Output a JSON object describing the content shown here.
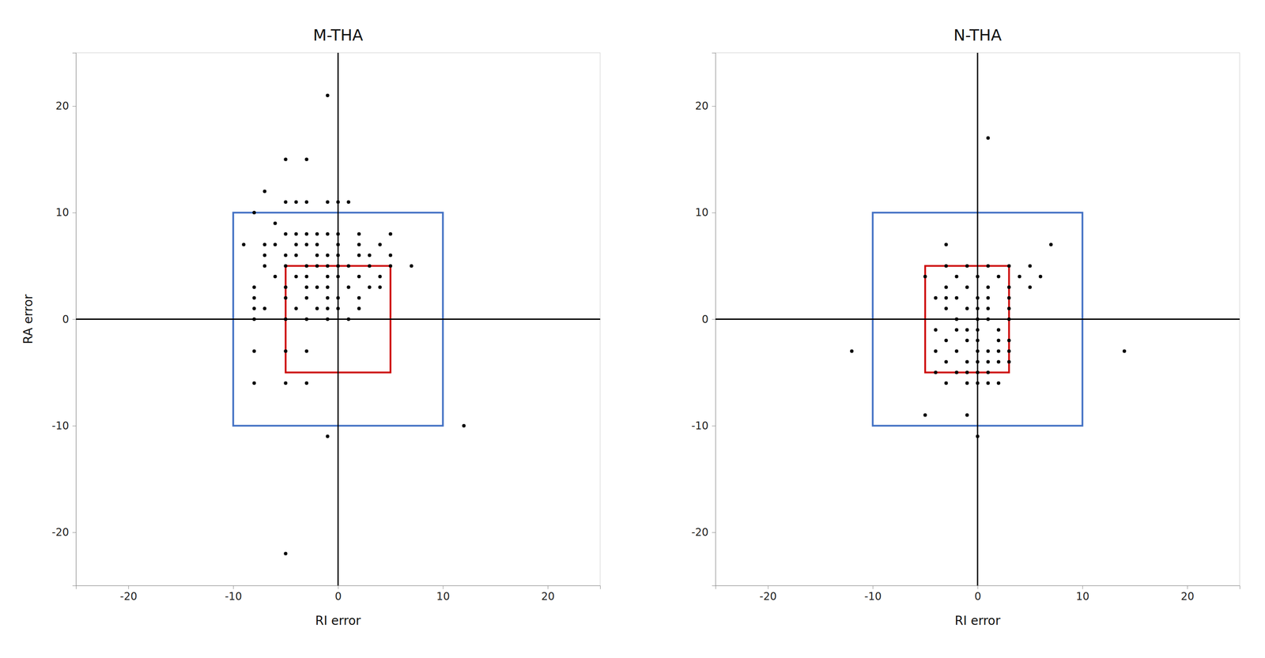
{
  "chart_data": [
    {
      "type": "scatter",
      "title": "M-THA",
      "xlabel": "RI error",
      "ylabel": "RA error",
      "xlim": [
        -25,
        25
      ],
      "ylim": [
        -25,
        25
      ],
      "xticks": [
        -20,
        -10,
        0,
        10,
        20
      ],
      "yticks": [
        -20,
        -10,
        0,
        10,
        20
      ],
      "color": "#000000",
      "vlines": [
        0
      ],
      "hlines": [
        0
      ],
      "boxes": [
        {
          "x": -10,
          "y": -10,
          "width": 20,
          "height": 20,
          "color": "#4472C4"
        },
        {
          "x": -5,
          "y": -5,
          "width": 10,
          "height": 10,
          "color": "#CC0000"
        }
      ],
      "x": [
        -1,
        -5,
        -3,
        -7,
        -5,
        -4,
        -3,
        -1,
        0,
        1,
        -8,
        -6,
        -5,
        -4,
        -3,
        -2,
        -1,
        0,
        2,
        5,
        -9,
        -7,
        -6,
        -4,
        -3,
        -2,
        0,
        2,
        4,
        -7,
        -5,
        -4,
        -2,
        -1,
        0,
        2,
        3,
        5,
        -7,
        -5,
        -3,
        -2,
        -1,
        0,
        1,
        3,
        5,
        7,
        -6,
        -4,
        -3,
        -1,
        0,
        2,
        4,
        -8,
        -5,
        -3,
        -2,
        -1,
        1,
        3,
        4,
        -8,
        -5,
        -3,
        -1,
        0,
        2,
        -8,
        -7,
        -4,
        -2,
        -1,
        0,
        2,
        -8,
        -5,
        -3,
        -1,
        1,
        -8,
        -5,
        -3,
        -8,
        -5,
        -3,
        -1,
        12,
        -5
      ],
      "y": [
        21,
        15,
        15,
        12,
        11,
        11,
        11,
        11,
        11,
        11,
        10,
        9,
        8,
        8,
        8,
        8,
        8,
        8,
        8,
        8,
        7,
        7,
        7,
        7,
        7,
        7,
        7,
        7,
        7,
        6,
        6,
        6,
        6,
        6,
        6,
        6,
        6,
        6,
        5,
        5,
        5,
        5,
        5,
        5,
        5,
        5,
        5,
        5,
        4,
        4,
        4,
        4,
        4,
        4,
        4,
        3,
        3,
        3,
        3,
        3,
        3,
        3,
        3,
        2,
        2,
        2,
        2,
        2,
        2,
        1,
        1,
        1,
        1,
        1,
        1,
        1,
        0,
        0,
        0,
        0,
        0,
        -3,
        -3,
        -3,
        -6,
        -6,
        -6,
        -11,
        -10,
        -22
      ]
    },
    {
      "type": "scatter",
      "title": "N-THA",
      "xlabel": "RI error",
      "xlim": [
        -25,
        25
      ],
      "ylim": [
        -25,
        25
      ],
      "xticks": [
        -20,
        -10,
        0,
        10,
        20
      ],
      "yticks": [
        -20,
        -10,
        0,
        10,
        20
      ],
      "color": "#000000",
      "vlines": [
        0
      ],
      "hlines": [
        0
      ],
      "boxes": [
        {
          "x": -10,
          "y": -10,
          "width": 20,
          "height": 20,
          "color": "#4472C4"
        },
        {
          "x": -5,
          "y": -5,
          "width": 8,
          "height": 10,
          "color": "#CC0000"
        }
      ],
      "x": [
        1,
        -3,
        7,
        -3,
        -1,
        1,
        3,
        5,
        -5,
        -2,
        0,
        2,
        4,
        6,
        -3,
        -1,
        1,
        3,
        5,
        -4,
        -2,
        0,
        1,
        3,
        -3,
        -1,
        0,
        1,
        3,
        -2,
        0,
        1,
        3,
        -4,
        -2,
        -1,
        0,
        2,
        -3,
        -1,
        0,
        2,
        3,
        -4,
        -2,
        0,
        1,
        2,
        3,
        -3,
        -1,
        0,
        1,
        2,
        3,
        -4,
        -2,
        -1,
        0,
        1,
        -3,
        -1,
        0,
        1,
        2,
        -5,
        -1,
        0,
        -12,
        14,
        -3
      ],
      "y": [
        17,
        7,
        7,
        5,
        5,
        5,
        5,
        5,
        4,
        4,
        4,
        4,
        4,
        4,
        3,
        3,
        3,
        3,
        3,
        2,
        2,
        2,
        2,
        2,
        1,
        1,
        1,
        1,
        1,
        0,
        0,
        0,
        0,
        -1,
        -1,
        -1,
        -1,
        -1,
        -2,
        -2,
        -2,
        -2,
        -2,
        -3,
        -3,
        -3,
        -3,
        -3,
        -3,
        -4,
        -4,
        -4,
        -4,
        -4,
        -4,
        -5,
        -5,
        -5,
        -5,
        -5,
        -6,
        -6,
        -6,
        -6,
        -6,
        -9,
        -9,
        -11,
        -3,
        -3,
        2
      ]
    }
  ]
}
